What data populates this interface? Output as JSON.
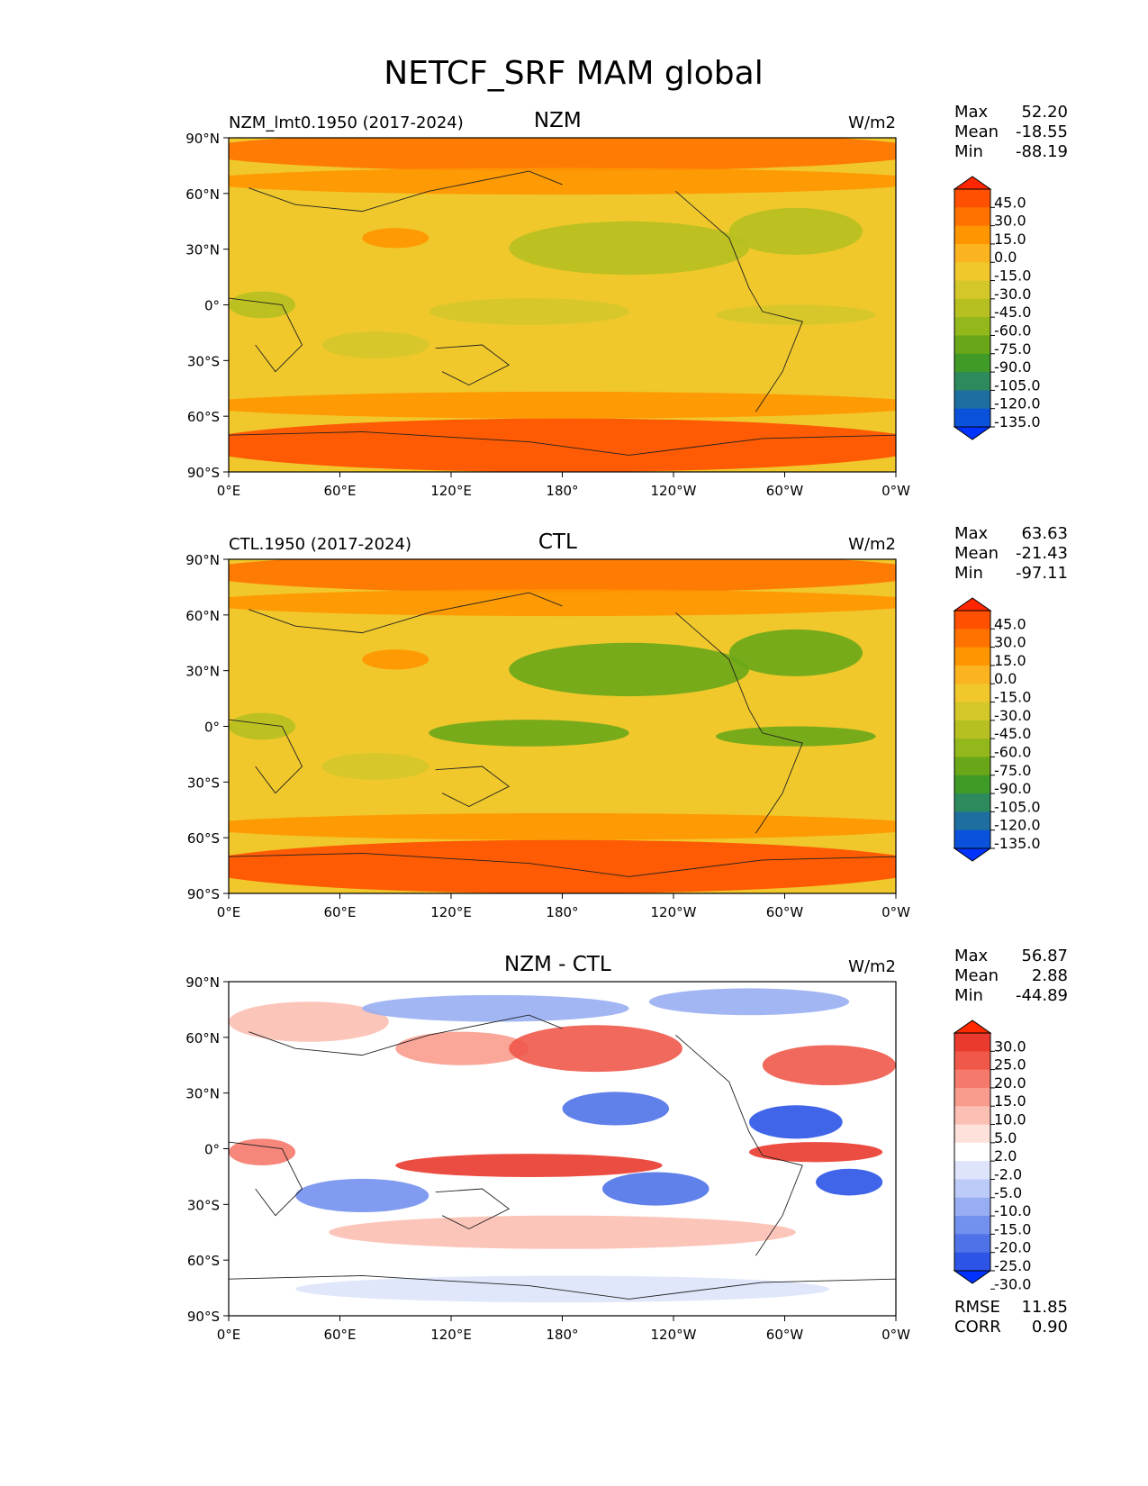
{
  "figure_title": "NETCF_SRF MAM global",
  "chart_data": [
    {
      "type": "heatmap",
      "panel": "test",
      "title": "NZM",
      "left_title": "NZM_lmt0.1950 (2017-2024)",
      "units": "W/m2",
      "stats": [
        {
          "label": "Max",
          "value": "52.20"
        },
        {
          "label": "Mean",
          "value": "-18.55"
        },
        {
          "label": "Min",
          "value": "-88.19"
        }
      ],
      "colorbar_levels": [
        "45.0",
        "30.0",
        "15.0",
        "0.0",
        "-15.0",
        "-30.0",
        "-45.0",
        "-60.0",
        "-75.0",
        "-90.0",
        "-105.0",
        "-120.0",
        "-135.0"
      ],
      "colorbar_colors": [
        "#ff2600",
        "#ff4f00",
        "#ff7200",
        "#ff9500",
        "#fbb31f",
        "#f0c82c",
        "#d4c72a",
        "#b6c020",
        "#92b81c",
        "#6aa718",
        "#3f9a28",
        "#2d8a5c",
        "#1e6fa0",
        "#0a52dc",
        "#0033ff"
      ],
      "lat_ticks": [
        "90°N",
        "60°N",
        "30°N",
        "0°",
        "30°S",
        "60°S",
        "90°S"
      ],
      "lon_ticks": [
        "0°E",
        "60°E",
        "120°E",
        "180°",
        "120°W",
        "60°W",
        "0°W"
      ]
    },
    {
      "type": "heatmap",
      "panel": "reference",
      "title": "CTL",
      "left_title": "CTL.1950 (2017-2024)",
      "units": "W/m2",
      "stats": [
        {
          "label": "Max",
          "value": "63.63"
        },
        {
          "label": "Mean",
          "value": "-21.43"
        },
        {
          "label": "Min",
          "value": "-97.11"
        }
      ],
      "colorbar_levels": [
        "45.0",
        "30.0",
        "15.0",
        "0.0",
        "-15.0",
        "-30.0",
        "-45.0",
        "-60.0",
        "-75.0",
        "-90.0",
        "-105.0",
        "-120.0",
        "-135.0"
      ],
      "colorbar_colors": [
        "#ff2600",
        "#ff4f00",
        "#ff7200",
        "#ff9500",
        "#fbb31f",
        "#f0c82c",
        "#d4c72a",
        "#b6c020",
        "#92b81c",
        "#6aa718",
        "#3f9a28",
        "#2d8a5c",
        "#1e6fa0",
        "#0a52dc",
        "#0033ff"
      ],
      "lat_ticks": [
        "90°N",
        "60°N",
        "30°N",
        "0°",
        "30°S",
        "60°S",
        "90°S"
      ],
      "lon_ticks": [
        "0°E",
        "60°E",
        "120°E",
        "180°",
        "120°W",
        "60°W",
        "0°W"
      ]
    },
    {
      "type": "heatmap",
      "panel": "difference",
      "title": "NZM - CTL",
      "left_title": "",
      "units": "W/m2",
      "stats": [
        {
          "label": "Max",
          "value": "56.87"
        },
        {
          "label": "Mean",
          "value": "2.88"
        },
        {
          "label": "Min",
          "value": "-44.89"
        }
      ],
      "extra_stats": [
        {
          "label": "RMSE",
          "value": "11.85"
        },
        {
          "label": "CORR",
          "value": "0.90"
        }
      ],
      "colorbar_levels": [
        "30.0",
        "25.0",
        "20.0",
        "15.0",
        "10.0",
        "5.0",
        "2.0",
        "-2.0",
        "-5.0",
        "-10.0",
        "-15.0",
        "-20.0",
        "-25.0",
        "-30.0"
      ],
      "colorbar_colors": [
        "#ff2a00",
        "#ea3a2e",
        "#f0584a",
        "#f57a6b",
        "#f99c8e",
        "#fcbfb3",
        "#fde1da",
        "#ffffff",
        "#dde4fb",
        "#bccbf7",
        "#98aef2",
        "#7290ed",
        "#4f72e8",
        "#2c54e6",
        "#0033ff"
      ],
      "lat_ticks": [
        "90°N",
        "60°N",
        "30°N",
        "0°",
        "30°S",
        "60°S",
        "90°S"
      ],
      "lon_ticks": [
        "0°E",
        "60°E",
        "120°E",
        "180°",
        "120°W",
        "60°W",
        "0°W"
      ]
    }
  ]
}
